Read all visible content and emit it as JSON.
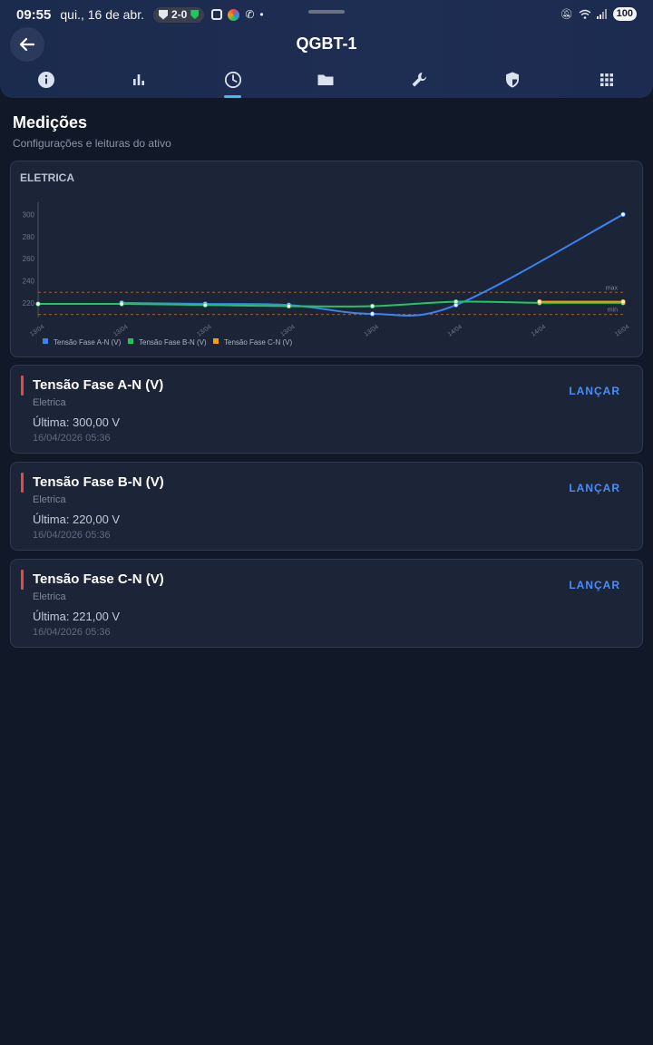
{
  "statusbar": {
    "time": "09:55",
    "date": "qui., 16 de abr.",
    "score": "2-0",
    "battery": "100"
  },
  "header": {
    "title": "QGBT-1",
    "back_icon": "arrow-left-icon",
    "tabs": [
      {
        "icon": "info-icon",
        "active": false
      },
      {
        "icon": "bar-chart-icon",
        "active": false
      },
      {
        "icon": "clock-icon",
        "active": true
      },
      {
        "icon": "folder-icon",
        "active": false
      },
      {
        "icon": "wrench-icon",
        "active": false
      },
      {
        "icon": "shield-icon",
        "active": false
      },
      {
        "icon": "grid-icon",
        "active": false
      }
    ],
    "accent": "#38bdf8"
  },
  "section": {
    "title": "Medições",
    "subtitle": "Configurações e leituras do ativo"
  },
  "chart": {
    "label": "ELETRICA"
  },
  "chart_data": {
    "type": "line",
    "x": [
      "13/04",
      "13/04",
      "13/04",
      "13/04",
      "13/04",
      "14/04",
      "14/04",
      "16/04"
    ],
    "yticks": [
      220,
      240,
      260,
      280,
      300
    ],
    "ylim": [
      210,
      302
    ],
    "grid": false,
    "legend_position": "bottom-left",
    "thresholds": [
      {
        "label": "max",
        "value": 229.5
      },
      {
        "label": "min",
        "value": 209.5
      }
    ],
    "series": [
      {
        "name": "Tensão Fase A-N (V)",
        "color": "#3b82f6",
        "values": [
          null,
          220,
          219,
          218,
          210,
          218,
          null,
          300
        ]
      },
      {
        "name": "Tensão Fase B-N (V)",
        "color": "#22c55e",
        "values": [
          219,
          219,
          218,
          217,
          217,
          221,
          220,
          220
        ]
      },
      {
        "name": "Tensão Fase C-N (V)",
        "color": "#f59e0b",
        "values": [
          null,
          null,
          null,
          null,
          null,
          null,
          221,
          221
        ]
      }
    ]
  },
  "measurements": [
    {
      "name": "Tensão Fase A-N (V)",
      "category": "Eletrica",
      "last": "Última: 300,00 V",
      "date": "16/04/2026 05:36",
      "action": "LANÇAR"
    },
    {
      "name": "Tensão Fase B-N (V)",
      "category": "Eletrica",
      "last": "Última: 220,00 V",
      "date": "16/04/2026 05:36",
      "action": "LANÇAR"
    },
    {
      "name": "Tensão Fase C-N (V)",
      "category": "Eletrica",
      "last": "Última: 221,00 V",
      "date": "16/04/2026 05:36",
      "action": "LANÇAR"
    }
  ]
}
